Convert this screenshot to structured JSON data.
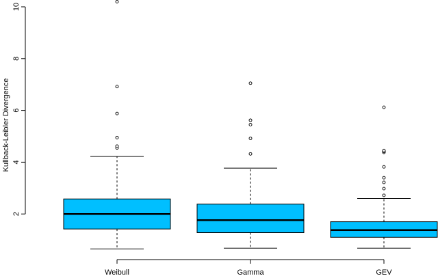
{
  "chart_data": {
    "type": "boxplot",
    "ylabel": "Kullback-Leibler Divergence",
    "ylim": [
      0,
      10
    ],
    "yticks": [
      2,
      4,
      6,
      8,
      10
    ],
    "box_color": "#00BFFF",
    "categories": [
      "Weibull",
      "Gamma",
      "GEV"
    ],
    "boxes": [
      {
        "name": "Weibull",
        "whisker_low": 0.65,
        "q1": 1.42,
        "median": 2.0,
        "q3": 2.58,
        "whisker_high": 4.22,
        "outliers": [
          4.55,
          4.62,
          4.95,
          5.88,
          6.92,
          10.2
        ]
      },
      {
        "name": "Gamma",
        "whisker_low": 0.68,
        "q1": 1.28,
        "median": 1.76,
        "q3": 2.38,
        "whisker_high": 3.77,
        "outliers": [
          4.32,
          4.92,
          5.45,
          5.62,
          7.05
        ]
      },
      {
        "name": "GEV",
        "whisker_low": 0.68,
        "q1": 1.1,
        "median": 1.38,
        "q3": 1.7,
        "whisker_high": 2.6,
        "outliers": [
          2.72,
          2.98,
          3.22,
          3.4,
          3.82,
          4.38,
          4.42,
          4.45,
          6.12
        ]
      }
    ]
  }
}
